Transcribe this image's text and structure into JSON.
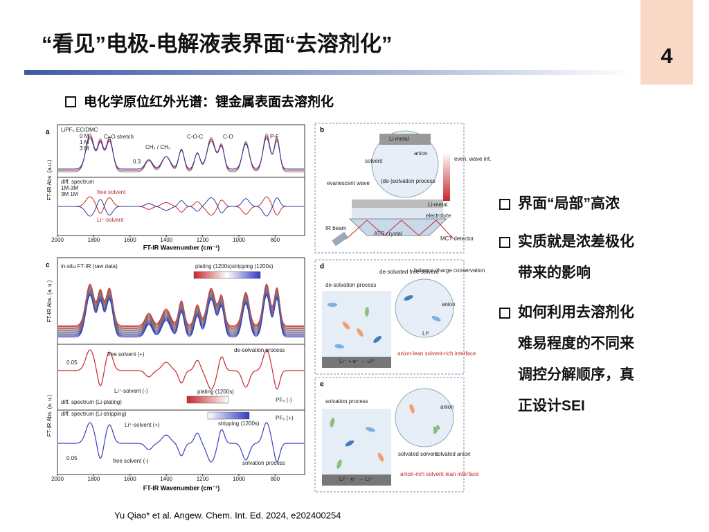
{
  "header": {
    "title": "“看见”电极-电解液表界面“去溶剂化”",
    "page_number": "4"
  },
  "subtitle": "电化学原位红外光谱：锂金属表面去溶剂化",
  "bullets": [
    {
      "lines": [
        "界面“局部”高浓"
      ]
    },
    {
      "lines": [
        "实质就是浓差极化",
        "带来的影响"
      ]
    },
    {
      "lines": [
        "如何利用去溶剂化",
        "难易程度的不同来",
        "调控分解顺序，真",
        "正设计SEI"
      ]
    }
  ],
  "citation": "Yu Qiao* et al. Angew. Chem. Int. Ed. 2024, e202400254",
  "figure": {
    "a": {
      "label": "a",
      "texts": [
        "LiPF₆ EC/DMC",
        "0 M",
        "1 M",
        "3 M",
        "C=O stretch",
        "CH₂ / CH₃",
        "C-O-C",
        "C-O",
        "P-F",
        "0.3",
        "diff. spectrum",
        "1M-3M",
        "3M 1M",
        "free solvent",
        "Li⁺-solvent"
      ],
      "y_label": "FT-IR Abs. (a.u.)",
      "x_label": "FT-IR Wavenumber (cm⁻¹)",
      "x_ticks": [
        "2000",
        "1800",
        "1600",
        "1400",
        "1200",
        "1000",
        "800"
      ]
    },
    "b": {
      "label": "b",
      "texts": [
        "Li-metal",
        "anion",
        "solvent",
        "(de-)solvation process",
        "evanescent wave",
        "even. wave int.",
        "Li-metal",
        "electrolyte",
        "IR beam",
        "ATR crystal",
        "MCT detector"
      ]
    },
    "c": {
      "label": "c",
      "texts": [
        "in-situ FT-IR (raw data)",
        "plating (1200s)",
        "stripping (1200s)",
        "de-solvation process",
        "free solvent (+)",
        "0.05",
        "Li⁺-solvent (-)",
        "diff. spectrum (Li-plating)",
        "plating (1200s)",
        "PF₆ (-)",
        "diff. spectrum (Li-stripping)",
        "stripping (1200s)",
        "PF₆ (+)",
        "Li⁺-solvent (+)",
        "0.05",
        "free solvent (-)",
        "solvation process"
      ],
      "y_labels": [
        "FT-IR Abs. (a. u.)",
        "FT-IR Abs. (a. u.)"
      ],
      "x_label": "FT-IR Wavenumber (cm⁻¹)",
      "x_ticks": [
        "2000",
        "1800",
        "1600",
        "1400",
        "1200",
        "1000",
        "800"
      ]
    },
    "d": {
      "label": "d",
      "texts": [
        "de-solvation process",
        "de-solvated free-solvent",
        "balance charge conservation",
        "anion",
        "Li⁰",
        "Li⁺ + e⁻ → Li⁰",
        "anion-lean solvent-rich interface"
      ]
    },
    "e": {
      "label": "e",
      "texts": [
        "solvation process",
        "anion",
        "Li⁺",
        "solvated solvent",
        "solvated anion",
        "Li⁰ - e⁻ → Li⁺",
        "anion-rich solvent-lean interface"
      ]
    }
  }
}
